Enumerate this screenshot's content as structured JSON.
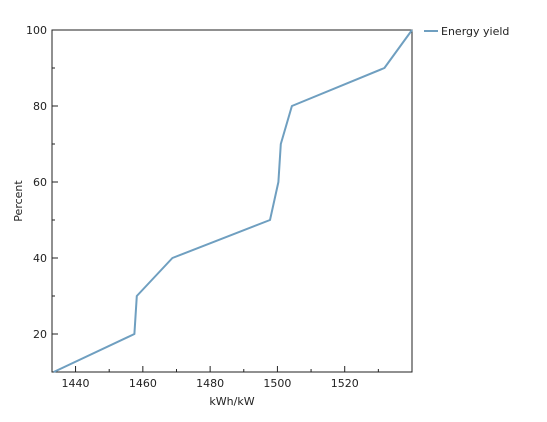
{
  "chart_data": {
    "type": "line",
    "title": "",
    "xlabel": "kWh/kW",
    "ylabel": "Percent",
    "xlim": [
      1433,
      1540
    ],
    "ylim": [
      10,
      100
    ],
    "x_ticks": [
      1440,
      1460,
      1480,
      1500,
      1520
    ],
    "y_ticks": [
      20,
      40,
      60,
      80,
      100
    ],
    "x_minor_ticks": [
      1450,
      1470,
      1490,
      1510,
      1530
    ],
    "y_minor_ticks": [
      30,
      50,
      70,
      90
    ],
    "grid": false,
    "legend": "top-right",
    "series": [
      {
        "name": "Energy yield",
        "color": "#6f9fc0",
        "points": [
          {
            "x": 1433.5,
            "y": 10
          },
          {
            "x": 1457.5,
            "y": 20
          },
          {
            "x": 1458.2,
            "y": 30
          },
          {
            "x": 1468.8,
            "y": 40
          },
          {
            "x": 1497.8,
            "y": 50
          },
          {
            "x": 1500.3,
            "y": 60
          },
          {
            "x": 1501.0,
            "y": 70
          },
          {
            "x": 1504.3,
            "y": 80
          },
          {
            "x": 1531.8,
            "y": 90
          },
          {
            "x": 1540.0,
            "y": 100
          }
        ]
      }
    ]
  }
}
